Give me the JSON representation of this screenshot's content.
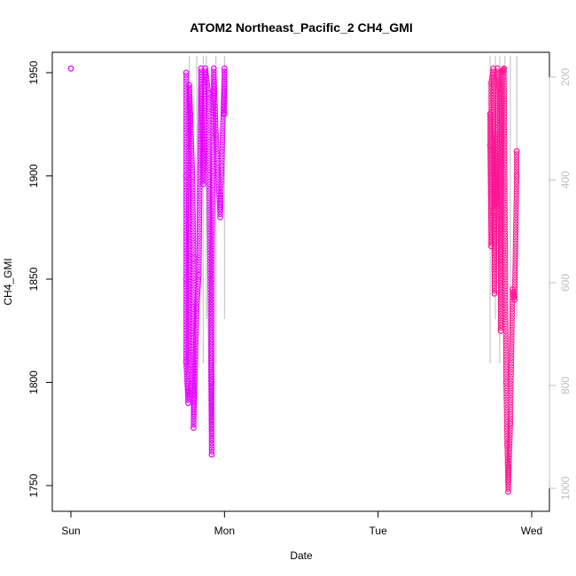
{
  "chart_data": {
    "type": "scatter",
    "title": "ATOM2 Northeast_Pacific_2 CH4_GMI",
    "xlabel": "Date",
    "ylabel": "CH4_GMI",
    "x_ticks": [
      "Sun",
      "Mon",
      "Tue",
      "Wed"
    ],
    "xlim": [
      "Sun",
      "Wed"
    ],
    "y_ticks": [
      1750,
      1800,
      1850,
      1900,
      1950
    ],
    "ylim": [
      1744,
      1962
    ],
    "y2_ticks": [
      200,
      400,
      600,
      800,
      1000
    ],
    "y2lim": [
      1030,
      170
    ],
    "y2_reversed": true,
    "grid": false,
    "legend": "none",
    "colors": {
      "series_a": "#e600ff",
      "series_b": "#ff1493",
      "pressure_line": "#bdbdbd"
    },
    "series": [
      {
        "values": [
          {
            "x": "Sun 00:00",
            "y": 1952
          },
          {
            "x": "Sun 18:00",
            "y": 1950
          },
          {
            "x": "Sun 18:00",
            "y": 1900
          },
          {
            "x": "Sun 18:00",
            "y": 1850
          },
          {
            "x": "Sun 18:00",
            "y": 1810
          },
          {
            "x": "Sun 18:20",
            "y": 1790
          },
          {
            "x": "Sun 18:20",
            "y": 1800
          },
          {
            "x": "Sun 18:30",
            "y": 1944
          },
          {
            "x": "Sun 18:40",
            "y": 1930
          },
          {
            "x": "Sun 19:00",
            "y": 1900
          },
          {
            "x": "Sun 19:10",
            "y": 1860
          },
          {
            "x": "Sun 19:10",
            "y": 1778
          },
          {
            "x": "Sun 19:40",
            "y": 1836
          },
          {
            "x": "Sun 20:00",
            "y": 1852
          },
          {
            "x": "Sun 20:20",
            "y": 1952
          },
          {
            "x": "Sun 20:40",
            "y": 1896
          },
          {
            "x": "Sun 21:00",
            "y": 1952
          },
          {
            "x": "Sun 21:30",
            "y": 1940
          },
          {
            "x": "Sun 22:00",
            "y": 1765
          },
          {
            "x": "Sun 22:00",
            "y": 1800
          },
          {
            "x": "Sun 22:00",
            "y": 1850
          },
          {
            "x": "Sun 22:20",
            "y": 1952
          },
          {
            "x": "Sun 22:40",
            "y": 1920
          },
          {
            "x": "Sun 23:20",
            "y": 1880
          },
          {
            "x": "Mon 00:00",
            "y": 1952
          },
          {
            "x": "Mon 00:00",
            "y": 1930
          }
        ]
      },
      {
        "values": [
          {
            "x": "Tue 17:30",
            "y": 1930
          },
          {
            "x": "Tue 17:30",
            "y": 1915
          },
          {
            "x": "Tue 17:40",
            "y": 1866
          },
          {
            "x": "Tue 17:40",
            "y": 1945
          },
          {
            "x": "Tue 18:00",
            "y": 1952
          },
          {
            "x": "Tue 18:10",
            "y": 1843
          },
          {
            "x": "Tue 18:20",
            "y": 1920
          },
          {
            "x": "Tue 18:30",
            "y": 1885
          },
          {
            "x": "Tue 18:40",
            "y": 1952
          },
          {
            "x": "Tue 19:00",
            "y": 1940
          },
          {
            "x": "Tue 19:10",
            "y": 1825
          },
          {
            "x": "Tue 19:20",
            "y": 1950
          },
          {
            "x": "Tue 19:40",
            "y": 1952
          },
          {
            "x": "Tue 20:00",
            "y": 1800
          },
          {
            "x": "Tue 20:10",
            "y": 1770
          },
          {
            "x": "Tue 20:20",
            "y": 1747
          },
          {
            "x": "Tue 20:40",
            "y": 1780
          },
          {
            "x": "Tue 21:00",
            "y": 1845
          },
          {
            "x": "Tue 21:20",
            "y": 1840
          },
          {
            "x": "Tue 21:40",
            "y": 1900
          },
          {
            "x": "Tue 21:40",
            "y": 1912
          }
        ]
      }
    ]
  }
}
